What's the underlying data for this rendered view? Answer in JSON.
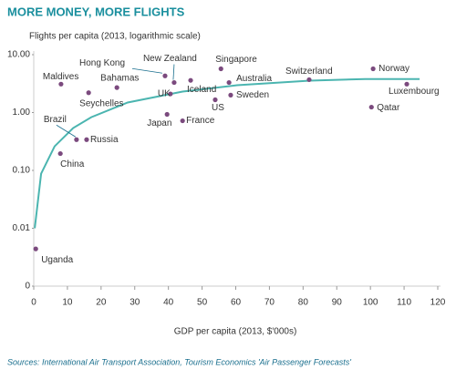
{
  "chart_data": {
    "type": "scatter",
    "title": "MORE MONEY, MORE FLIGHTS",
    "y_label": "Flights per capita (2013, logarithmic scale)",
    "x_label": "GDP per capita (2013, $'000s)",
    "source": "Sources: International Air Transport Association, Tourism Economics 'Air Passenger Forecasts'",
    "log_y": true,
    "color": "#7b4a7e",
    "points": {
      "labels": [
        "Uganda",
        "China",
        "Brazil",
        "Russia",
        "Maldives",
        "Seychelles",
        "Bahamas",
        "Hong Kong",
        "New Zealand",
        "Iceland",
        "UK",
        "Japan",
        "France",
        "Singapore",
        "Australia",
        "Sweden",
        "US",
        "Switzerland",
        "Norway",
        "Qatar",
        "Luxembourg"
      ],
      "x": [
        0.6,
        7.9,
        12.7,
        15.7,
        8.1,
        16.3,
        24.7,
        39,
        41.7,
        46.6,
        40.6,
        39.6,
        44.2,
        55.6,
        58,
        58.5,
        53.9,
        81.8,
        100.8,
        100.3,
        110.8
      ],
      "values": [
        0.0044,
        0.195,
        0.34,
        0.34,
        3.1,
        2.2,
        2.7,
        4.3,
        3.3,
        3.6,
        2.1,
        0.93,
        0.72,
        5.7,
        3.3,
        2.0,
        1.66,
        3.7,
        5.7,
        1.24,
        3.1
      ]
    },
    "trend": {
      "color": "#4bb5b0",
      "x": [
        0.3,
        2.2,
        6.2,
        11.7,
        17.1,
        27.9,
        44.2,
        60.4,
        82,
        98.4,
        114.6
      ],
      "values": [
        0.01,
        0.088,
        0.26,
        0.54,
        0.83,
        1.49,
        2.3,
        2.97,
        3.56,
        3.8,
        3.8
      ]
    },
    "xlim": [
      0,
      120
    ],
    "xticks": [
      0,
      10,
      20,
      30,
      40,
      50,
      60,
      70,
      80,
      90,
      100,
      110,
      120
    ],
    "ylim": [
      0.001,
      10
    ],
    "yticks": [
      {
        "value": 10,
        "label": "10.00"
      },
      {
        "value": 1,
        "label": "1.00"
      },
      {
        "value": 0.1,
        "label": "0.10"
      },
      0.01,
      {
        "value": 0.001,
        "label": "0"
      }
    ]
  }
}
